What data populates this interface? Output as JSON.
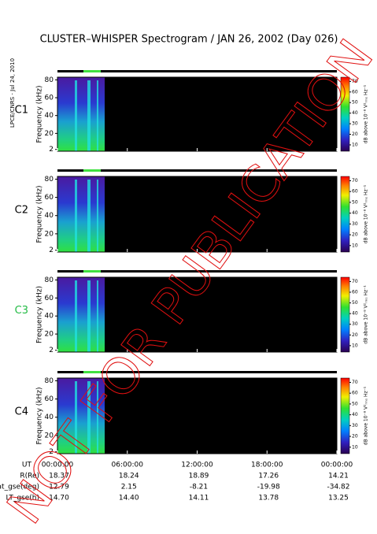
{
  "title": "CLUSTER–WHISPER Spectrogram / JAN 26, 2002 (Day 026)",
  "credit": "LPCE/CNRS - Jul 24, 2010",
  "watermark": "NOT FOR PUBLICATION",
  "time_axis": {
    "xlim": [
      0,
      24
    ],
    "xticks": [
      {
        "value": 0,
        "label": "00:00:00"
      },
      {
        "value": 6,
        "label": "06:00:00"
      },
      {
        "value": 12,
        "label": "12:00:00"
      },
      {
        "value": 18,
        "label": "18:00:00"
      },
      {
        "value": 24,
        "label": "00:00:00"
      }
    ],
    "label": "UT"
  },
  "ephemeris": [
    {
      "label": "R(Re)",
      "values": [
        "18.37",
        "18.24",
        "18.89",
        "17.26",
        "14.21"
      ]
    },
    {
      "label": "Lat_gse(deg)",
      "values": [
        "12.79",
        "2.15",
        "-8.21",
        "-19.98",
        "-34.82"
      ]
    },
    {
      "label": "LT_gse(h)",
      "values": [
        "14.70",
        "14.40",
        "14.11",
        "13.78",
        "13.25"
      ]
    }
  ],
  "chart_data": [
    {
      "type": "spectrogram",
      "label": "C1",
      "label_color": "#000000",
      "ylabel": "Frequency (kHz)",
      "ylim": [
        0,
        83
      ],
      "yticks": [
        2,
        20,
        40,
        60,
        80
      ],
      "colorbar": {
        "ylim": [
          4,
          74
        ],
        "yticks": [
          10,
          20,
          30,
          40,
          50,
          60,
          70
        ],
        "label": "dB above 10⁻⁸ V²ᵣₘₛ Hz⁻¹"
      }
    },
    {
      "type": "spectrogram",
      "label": "C2",
      "label_color": "#000000",
      "ylabel": "Frequency (kHz)",
      "ylim": [
        0,
        83
      ],
      "yticks": [
        2,
        20,
        40,
        60,
        80
      ],
      "colorbar": {
        "ylim": [
          4,
          74
        ],
        "yticks": [
          10,
          20,
          30,
          40,
          50,
          60,
          70
        ],
        "label": "dB above 10⁻⁸ V²ᵣₘₛ Hz⁻¹"
      }
    },
    {
      "type": "spectrogram",
      "label": "C3",
      "label_color": "#22bb44",
      "ylabel": "Frequency (kHz)",
      "ylim": [
        0,
        83
      ],
      "yticks": [
        2,
        20,
        40,
        60,
        80
      ],
      "colorbar": {
        "ylim": [
          4,
          74
        ],
        "yticks": [
          10,
          20,
          30,
          40,
          50,
          60,
          70
        ],
        "label": "dB above 10⁻⁸ V²ᵣₘₛ Hz⁻¹"
      }
    },
    {
      "type": "spectrogram",
      "label": "C4",
      "label_color": "#000000",
      "ylabel": "Frequency (kHz)",
      "ylim": [
        0,
        83
      ],
      "yticks": [
        2,
        20,
        40,
        60,
        80
      ],
      "colorbar": {
        "ylim": [
          4,
          74
        ],
        "yticks": [
          10,
          20,
          30,
          40,
          50,
          60,
          70
        ],
        "label": "dB above 10⁻⁸ V²ᵣₘₛ Hz⁻¹"
      }
    }
  ]
}
